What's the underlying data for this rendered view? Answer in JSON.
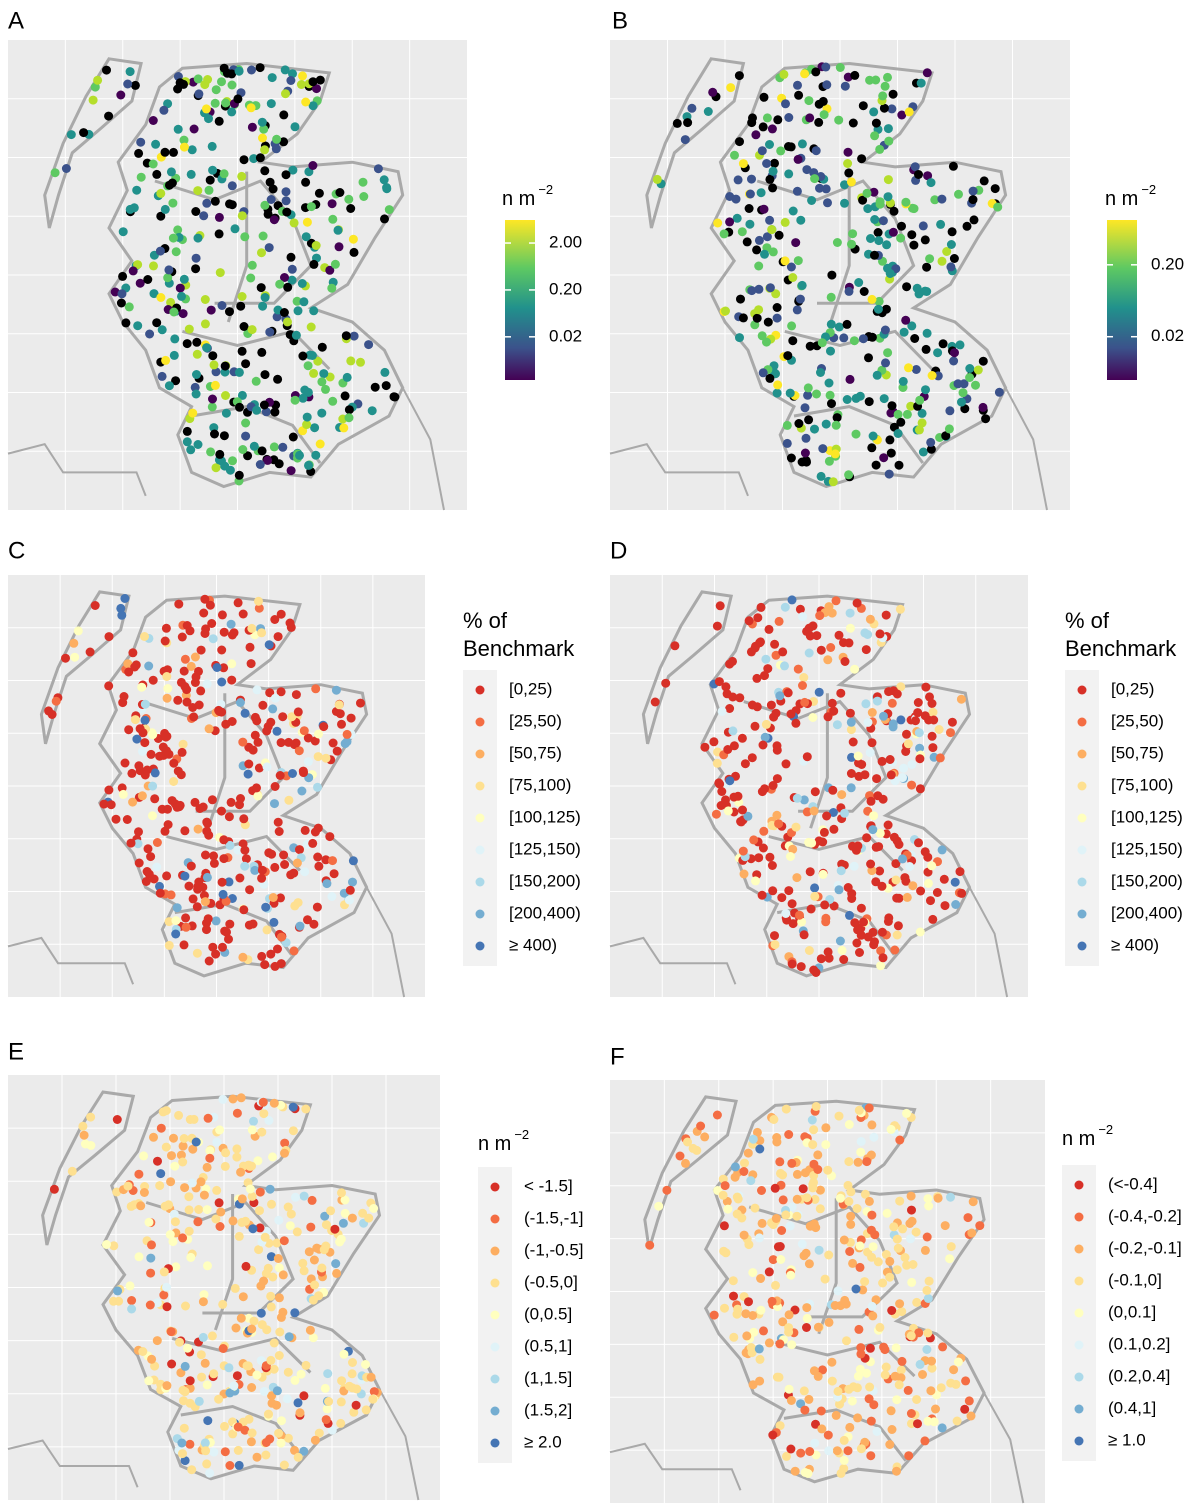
{
  "panels": [
    {
      "label": "A",
      "legend": {
        "type": "colorbar",
        "title": "n m",
        "title_sup": "−2",
        "scale": "log",
        "lim": [
          0.0024,
          6.2
        ],
        "ticks": [
          {
            "value": 2,
            "label": "2.00"
          },
          {
            "value": 0.2,
            "label": "0.20"
          },
          {
            "value": 0.02,
            "label": "0.02"
          }
        ]
      }
    },
    {
      "label": "B",
      "legend": {
        "type": "colorbar",
        "title": "n m",
        "title_sup": "−2",
        "scale": "log",
        "lim": [
          0.005,
          0.84
        ],
        "ticks": [
          {
            "value": 0.2,
            "label": "0.20"
          },
          {
            "value": 0.02,
            "label": "0.02"
          }
        ]
      }
    },
    {
      "label": "C",
      "legend": {
        "type": "key",
        "title_lines": [
          "% of",
          "Benchmark"
        ],
        "entries": [
          {
            "label": "[0,25)",
            "color": "#d73027"
          },
          {
            "label": "[25,50)",
            "color": "#f46d43"
          },
          {
            "label": "[50,75)",
            "color": "#fdae61"
          },
          {
            "label": "[75,100)",
            "color": "#fee090"
          },
          {
            "label": "[100,125)",
            "color": "#ffffbf"
          },
          {
            "label": "[125,150)",
            "color": "#e0f3f8"
          },
          {
            "label": "[150,200)",
            "color": "#abd9e9"
          },
          {
            "label": "[200,400)",
            "color": "#74add1"
          },
          {
            "label": "≥ 400)",
            "color": "#4575b4"
          }
        ]
      }
    },
    {
      "label": "D",
      "legend": {
        "type": "key",
        "title_lines": [
          "% of",
          "Benchmark"
        ],
        "entries": [
          {
            "label": "[0,25)",
            "color": "#d73027"
          },
          {
            "label": "[25,50)",
            "color": "#f46d43"
          },
          {
            "label": "[50,75)",
            "color": "#fdae61"
          },
          {
            "label": "[75,100)",
            "color": "#fee090"
          },
          {
            "label": "[100,125)",
            "color": "#ffffbf"
          },
          {
            "label": "[125,150)",
            "color": "#e0f3f8"
          },
          {
            "label": "[150,200)",
            "color": "#abd9e9"
          },
          {
            "label": "[200,400)",
            "color": "#74add1"
          },
          {
            "label": "≥ 400)",
            "color": "#4575b4"
          }
        ]
      }
    },
    {
      "label": "E",
      "legend": {
        "type": "key",
        "title": "n m",
        "title_sup": "−2",
        "entries": [
          {
            "label": "< -1.5]",
            "color": "#d73027"
          },
          {
            "label": "(-1.5,-1]",
            "color": "#f46d43"
          },
          {
            "label": "(-1,-0.5]",
            "color": "#fdae61"
          },
          {
            "label": "(-0.5,0]",
            "color": "#fee090"
          },
          {
            "label": "(0,0.5]",
            "color": "#ffffbf"
          },
          {
            "label": "(0.5,1]",
            "color": "#e0f3f8"
          },
          {
            "label": "(1,1.5]",
            "color": "#abd9e9"
          },
          {
            "label": "(1.5,2]",
            "color": "#74add1"
          },
          {
            "label": "≥ 2.0",
            "color": "#4575b4"
          }
        ]
      }
    },
    {
      "label": "F",
      "legend": {
        "type": "key",
        "title": "n m",
        "title_sup": "−2",
        "entries": [
          {
            "label": "(<-0.4]",
            "color": "#d73027"
          },
          {
            "label": "(-0.4,-0.2]",
            "color": "#f46d43"
          },
          {
            "label": "(-0.2,-0.1]",
            "color": "#fdae61"
          },
          {
            "label": "(-0.1,0]",
            "color": "#fee090"
          },
          {
            "label": "(0,0.1]",
            "color": "#ffffbf"
          },
          {
            "label": "(0.1,0.2]",
            "color": "#e0f3f8"
          },
          {
            "label": "(0.2,0.4]",
            "color": "#abd9e9"
          },
          {
            "label": "(0.4,1]",
            "color": "#74add1"
          },
          {
            "label": "≥ 1.0",
            "color": "#4575b4"
          }
        ]
      }
    }
  ]
}
